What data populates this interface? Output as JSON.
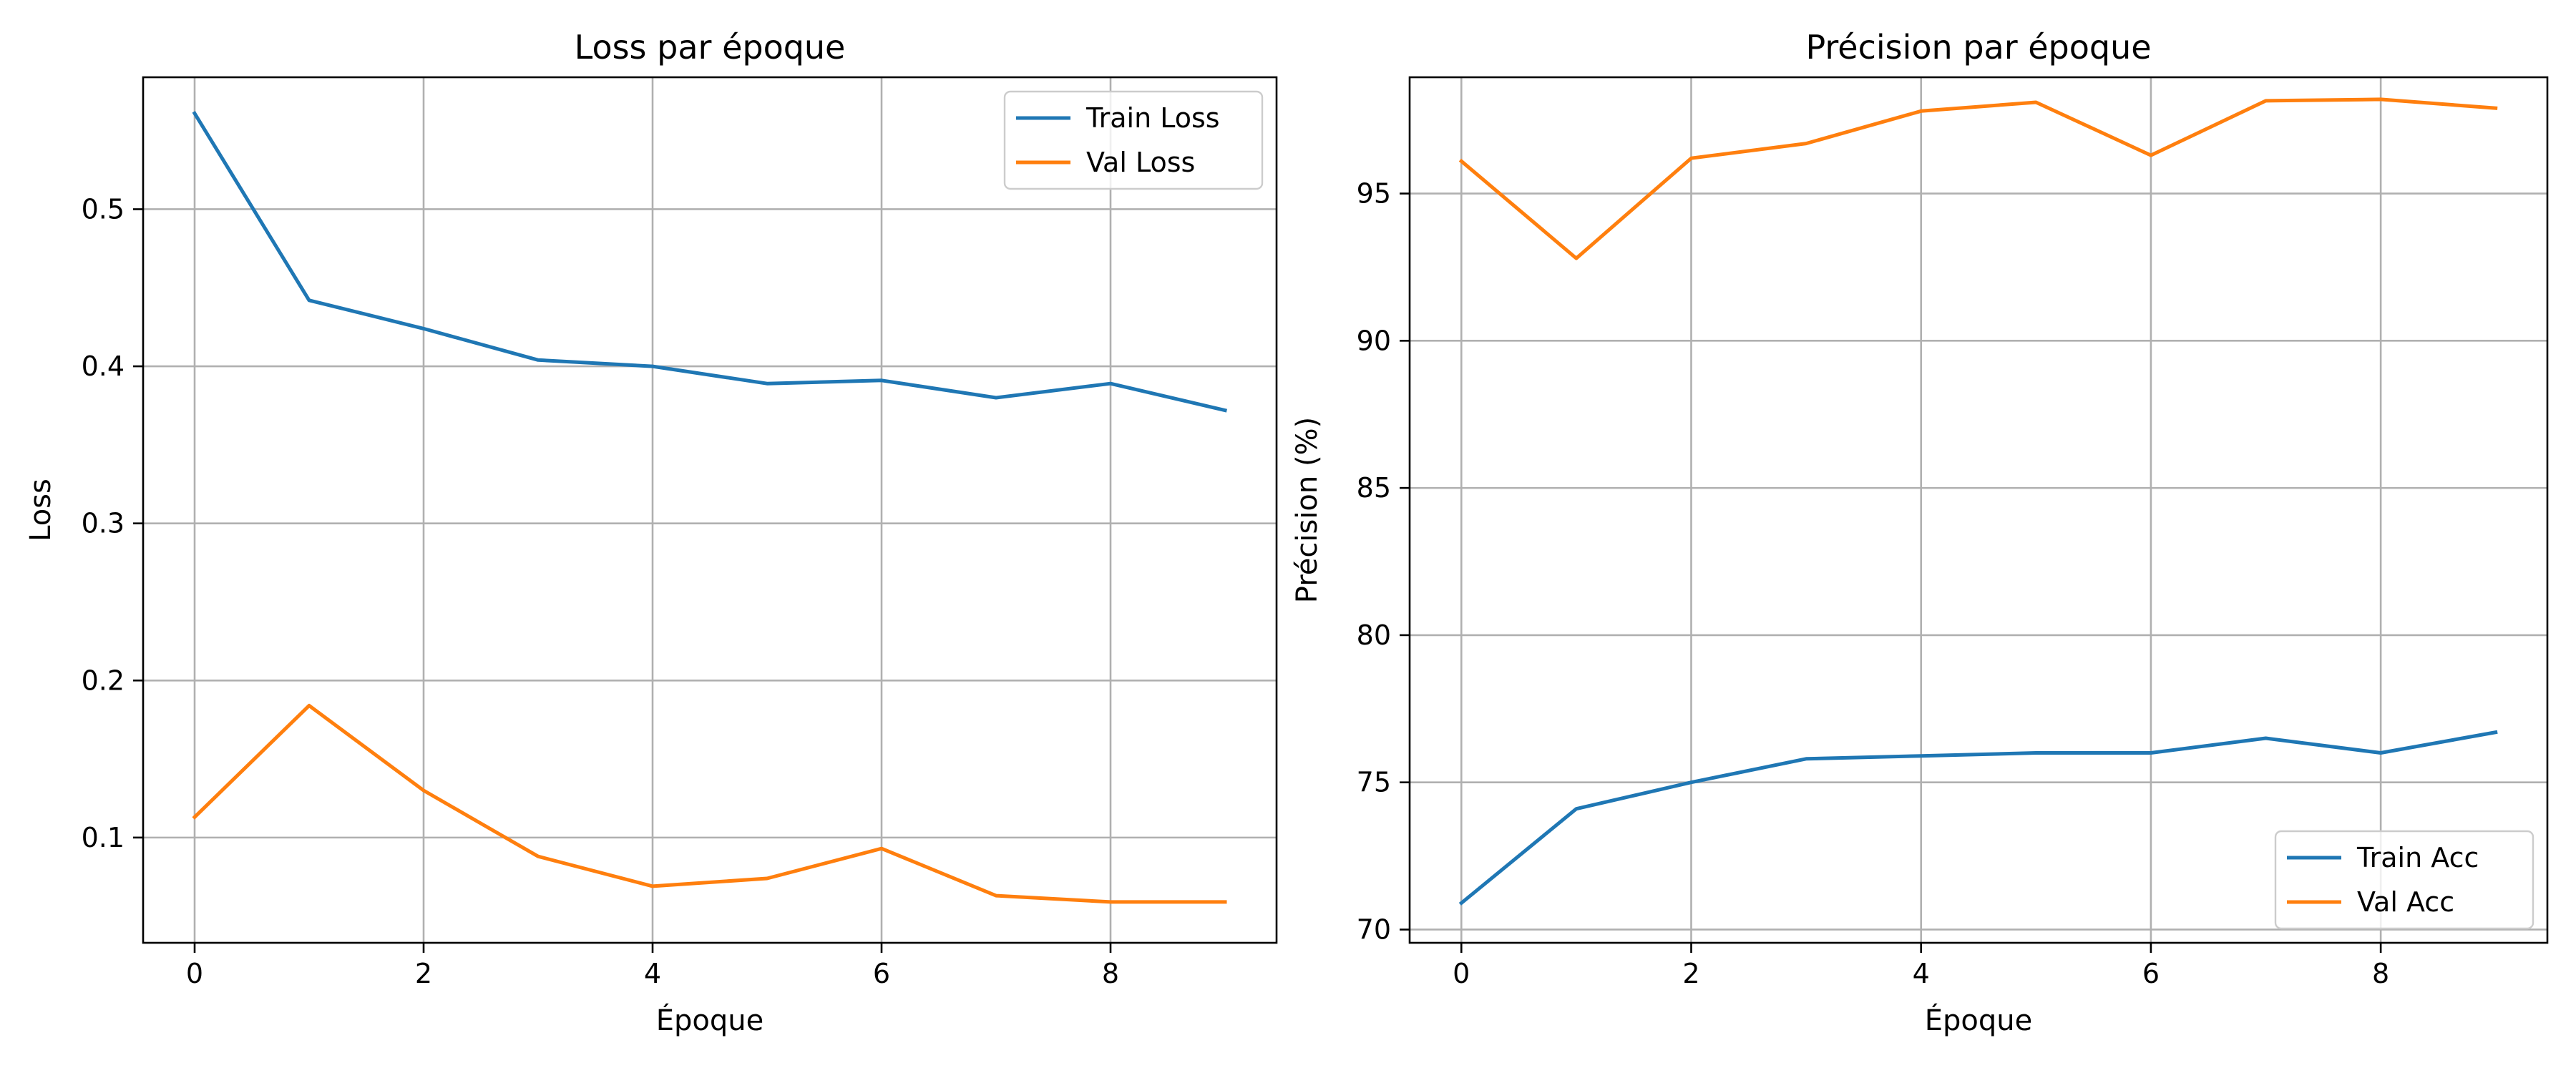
{
  "chart_data": [
    {
      "type": "line",
      "title": "Loss par époque",
      "xlabel": "Époque",
      "ylabel": "Loss",
      "x": [
        0,
        1,
        2,
        3,
        4,
        5,
        6,
        7,
        8,
        9
      ],
      "xlim": [
        -0.45,
        9.45
      ],
      "ylim": [
        0.033,
        0.584
      ],
      "xticks": [
        0,
        2,
        4,
        6,
        8
      ],
      "yticks": [
        0.1,
        0.2,
        0.3,
        0.4,
        0.5
      ],
      "ytick_labels": [
        "0.1",
        "0.2",
        "0.3",
        "0.4",
        "0.5"
      ],
      "grid": true,
      "legend_position": "top-right",
      "series": [
        {
          "name": "Train Loss",
          "color": "#1f77b4",
          "values": [
            0.561,
            0.442,
            0.424,
            0.404,
            0.4,
            0.389,
            0.391,
            0.38,
            0.389,
            0.372
          ]
        },
        {
          "name": "Val Loss",
          "color": "#ff7f0e",
          "values": [
            0.113,
            0.184,
            0.13,
            0.088,
            0.069,
            0.074,
            0.093,
            0.063,
            0.059,
            0.059
          ]
        }
      ]
    },
    {
      "type": "line",
      "title": "Précision par époque",
      "xlabel": "Époque",
      "ylabel": "Précision (%)",
      "x": [
        0,
        1,
        2,
        3,
        4,
        5,
        6,
        7,
        8,
        9
      ],
      "xlim": [
        -0.45,
        9.45
      ],
      "ylim": [
        69.55,
        98.95
      ],
      "xticks": [
        0,
        2,
        4,
        6,
        8
      ],
      "yticks": [
        70,
        75,
        80,
        85,
        90,
        95
      ],
      "ytick_labels": [
        "70",
        "75",
        "80",
        "85",
        "90",
        "95"
      ],
      "grid": true,
      "legend_position": "bottom-right",
      "series": [
        {
          "name": "Train Acc",
          "color": "#1f77b4",
          "values": [
            70.9,
            74.1,
            75.0,
            75.8,
            75.9,
            76.0,
            76.0,
            76.5,
            76.0,
            76.7
          ]
        },
        {
          "name": "Val Acc",
          "color": "#ff7f0e",
          "values": [
            96.1,
            92.8,
            96.2,
            96.7,
            97.8,
            98.1,
            96.3,
            98.15,
            98.2,
            97.9
          ]
        }
      ]
    }
  ]
}
